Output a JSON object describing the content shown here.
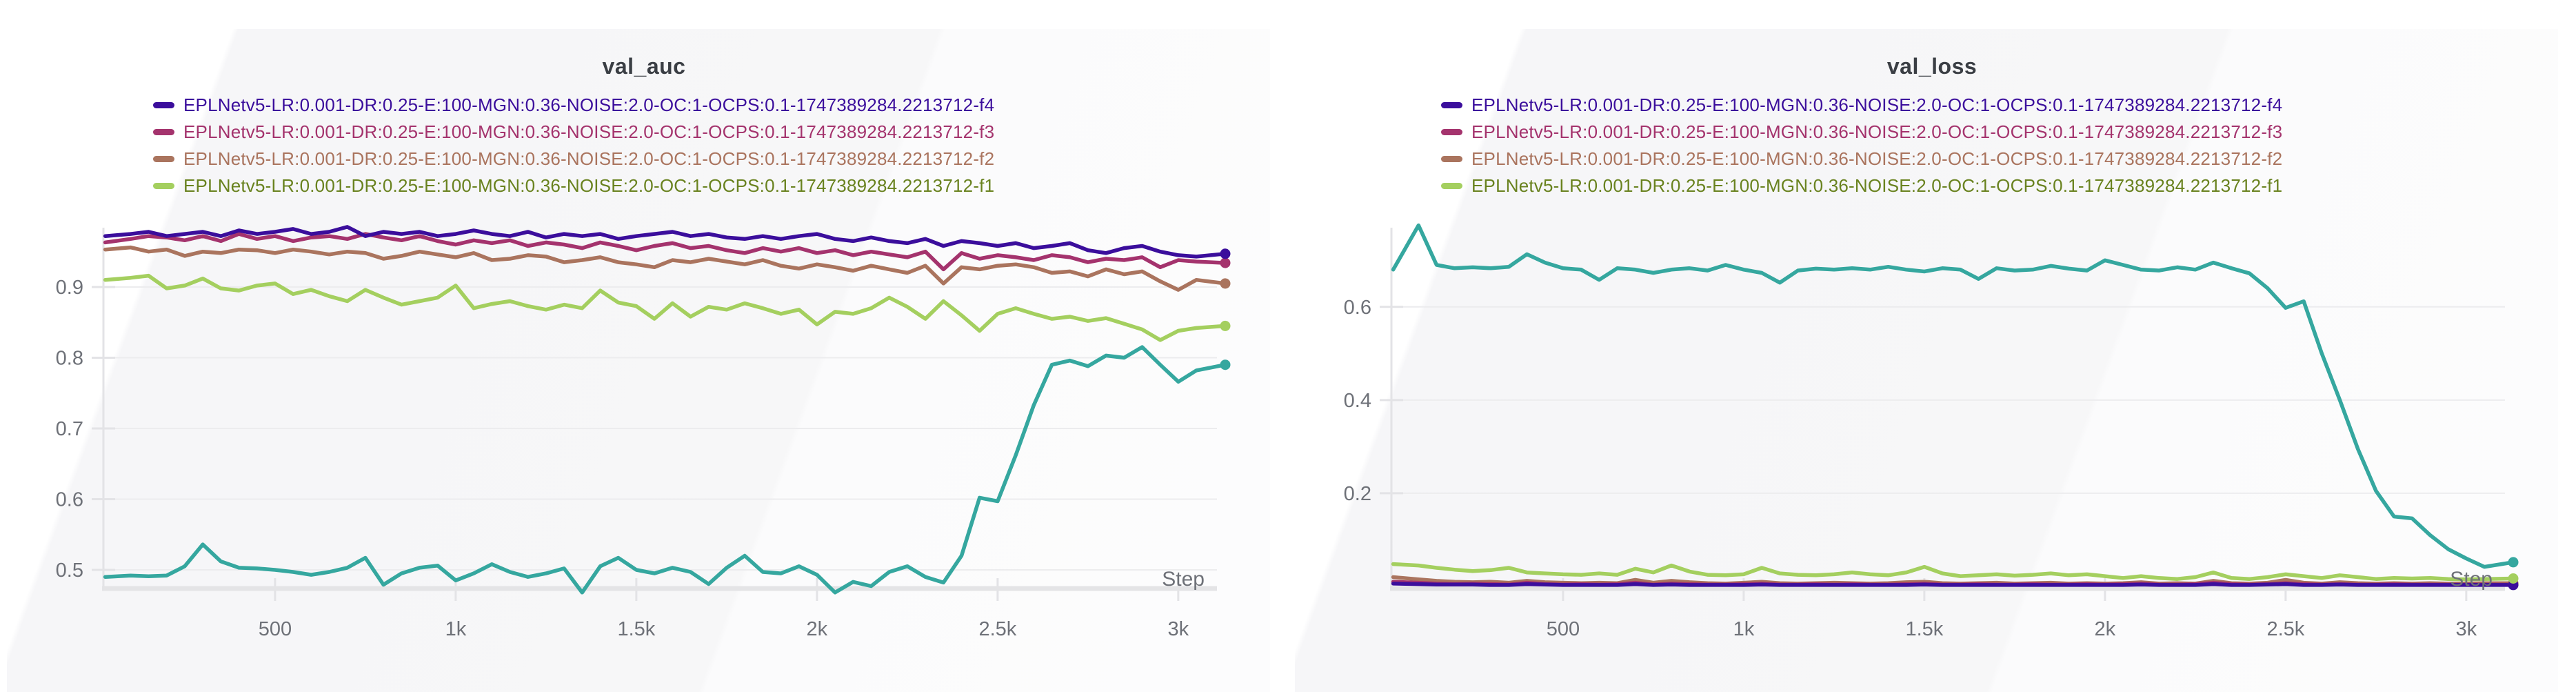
{
  "chart_data": [
    {
      "type": "line",
      "title": "val_auc",
      "xlabel": "Step",
      "grid": true,
      "legend_position": "top-left",
      "ylim": [
        0.4746,
        0.9839
      ],
      "xlim": [
        25,
        3160
      ],
      "y_ticks": [
        {
          "v": 0.9,
          "label": "0.9"
        },
        {
          "v": 0.8,
          "label": "0.8"
        },
        {
          "v": 0.7,
          "label": "0.7"
        },
        {
          "v": 0.6,
          "label": "0.6"
        },
        {
          "v": 0.5,
          "label": "0.5"
        }
      ],
      "x_ticks": [
        {
          "v": 500,
          "label": "500"
        },
        {
          "v": 1000,
          "label": "1k"
        },
        {
          "v": 1500,
          "label": "1.5k"
        },
        {
          "v": 2000,
          "label": "2k"
        },
        {
          "v": 2500,
          "label": "2.5k"
        },
        {
          "v": 3000,
          "label": "3k"
        }
      ],
      "x": [
        30,
        100,
        150,
        200,
        250,
        300,
        350,
        400,
        450,
        500,
        550,
        600,
        650,
        700,
        750,
        800,
        850,
        900,
        950,
        1000,
        1050,
        1100,
        1150,
        1200,
        1250,
        1300,
        1350,
        1400,
        1450,
        1500,
        1550,
        1600,
        1650,
        1700,
        1750,
        1800,
        1850,
        1900,
        1950,
        2000,
        2050,
        2100,
        2150,
        2200,
        2250,
        2300,
        2350,
        2400,
        2450,
        2500,
        2550,
        2600,
        2650,
        2700,
        2750,
        2800,
        2850,
        2900,
        2950,
        3000,
        3050,
        3130
      ],
      "series": [
        {
          "name": "EPLNetv5-LR:0.001-DR:0.25-E:100-MGN:0.36-NOISE:2.0-OC:1-OCPS:0.1-1747389284.2213712-f4",
          "color": "#3b0e9c",
          "text_color": "#3b0e9c",
          "z": 3,
          "in_legend": true,
          "values": [
            0.972,
            0.975,
            0.978,
            0.972,
            0.975,
            0.978,
            0.972,
            0.98,
            0.975,
            0.978,
            0.982,
            0.975,
            0.978,
            0.985,
            0.972,
            0.978,
            0.975,
            0.978,
            0.972,
            0.975,
            0.98,
            0.975,
            0.972,
            0.978,
            0.97,
            0.975,
            0.972,
            0.975,
            0.968,
            0.972,
            0.975,
            0.978,
            0.972,
            0.975,
            0.97,
            0.968,
            0.972,
            0.968,
            0.972,
            0.975,
            0.968,
            0.965,
            0.97,
            0.965,
            0.962,
            0.968,
            0.958,
            0.965,
            0.962,
            0.958,
            0.962,
            0.955,
            0.958,
            0.962,
            0.952,
            0.948,
            0.955,
            0.958,
            0.95,
            0.945,
            0.943,
            0.947
          ]
        },
        {
          "name": "EPLNetv5-LR:0.001-DR:0.25-E:100-MGN:0.36-NOISE:2.0-OC:1-OCPS:0.1-1747389284.2213712-f3",
          "color": "#a4336d",
          "text_color": "#a4336d",
          "z": 2,
          "in_legend": true,
          "values": [
            0.963,
            0.968,
            0.972,
            0.97,
            0.966,
            0.972,
            0.965,
            0.975,
            0.968,
            0.972,
            0.965,
            0.97,
            0.972,
            0.968,
            0.975,
            0.97,
            0.966,
            0.972,
            0.965,
            0.96,
            0.966,
            0.962,
            0.966,
            0.958,
            0.963,
            0.96,
            0.955,
            0.963,
            0.958,
            0.952,
            0.958,
            0.962,
            0.955,
            0.958,
            0.952,
            0.948,
            0.955,
            0.95,
            0.955,
            0.948,
            0.952,
            0.945,
            0.95,
            0.946,
            0.942,
            0.95,
            0.925,
            0.948,
            0.94,
            0.945,
            0.942,
            0.938,
            0.945,
            0.942,
            0.935,
            0.94,
            0.938,
            0.942,
            0.928,
            0.938,
            0.936,
            0.934
          ]
        },
        {
          "name": "EPLNetv5-LR:0.001-DR:0.25-E:100-MGN:0.36-NOISE:2.0-OC:1-OCPS:0.1-1747389284.2213712-f2",
          "color": "#aa745e",
          "text_color": "#aa745e",
          "z": 1,
          "in_legend": true,
          "values": [
            0.953,
            0.956,
            0.95,
            0.953,
            0.944,
            0.95,
            0.948,
            0.953,
            0.952,
            0.948,
            0.953,
            0.95,
            0.946,
            0.95,
            0.948,
            0.94,
            0.944,
            0.95,
            0.946,
            0.942,
            0.948,
            0.938,
            0.94,
            0.945,
            0.943,
            0.935,
            0.938,
            0.942,
            0.935,
            0.932,
            0.928,
            0.938,
            0.935,
            0.94,
            0.936,
            0.932,
            0.938,
            0.93,
            0.926,
            0.932,
            0.928,
            0.923,
            0.93,
            0.925,
            0.92,
            0.93,
            0.905,
            0.928,
            0.925,
            0.93,
            0.932,
            0.928,
            0.92,
            0.922,
            0.915,
            0.925,
            0.918,
            0.922,
            0.908,
            0.896,
            0.91,
            0.905
          ]
        },
        {
          "name": "EPLNetv5-LR:0.001-DR:0.25-E:100-MGN:0.36-NOISE:2.0-OC:1-OCPS:0.1-1747389284.2213712-f1",
          "color": "#a4cf5f",
          "text_color": "#69821f",
          "z": 4,
          "in_legend": true,
          "values": [
            0.91,
            0.913,
            0.916,
            0.898,
            0.902,
            0.912,
            0.898,
            0.895,
            0.902,
            0.905,
            0.89,
            0.896,
            0.887,
            0.88,
            0.896,
            0.885,
            0.875,
            0.88,
            0.885,
            0.902,
            0.87,
            0.876,
            0.88,
            0.873,
            0.868,
            0.875,
            0.87,
            0.895,
            0.878,
            0.873,
            0.855,
            0.877,
            0.858,
            0.872,
            0.868,
            0.877,
            0.87,
            0.862,
            0.868,
            0.847,
            0.865,
            0.862,
            0.87,
            0.885,
            0.872,
            0.855,
            0.88,
            0.86,
            0.838,
            0.862,
            0.87,
            0.862,
            0.855,
            0.858,
            0.852,
            0.856,
            0.848,
            0.84,
            0.825,
            0.838,
            0.842,
            0.845
          ]
        },
        {
          "name": "",
          "color": "#35a79f",
          "text_color": "#35a79f",
          "z": 5,
          "in_legend": false,
          "values": [
            0.49,
            0.492,
            0.491,
            0.492,
            0.505,
            0.536,
            0.512,
            0.503,
            0.502,
            0.5,
            0.497,
            0.493,
            0.497,
            0.503,
            0.517,
            0.479,
            0.495,
            0.503,
            0.506,
            0.485,
            0.495,
            0.508,
            0.497,
            0.49,
            0.495,
            0.502,
            0.468,
            0.505,
            0.517,
            0.5,
            0.495,
            0.503,
            0.497,
            0.48,
            0.503,
            0.52,
            0.497,
            0.495,
            0.505,
            0.493,
            0.468,
            0.483,
            0.477,
            0.497,
            0.505,
            0.49,
            0.482,
            0.52,
            0.602,
            0.597,
            0.662,
            0.733,
            0.79,
            0.796,
            0.788,
            0.803,
            0.8,
            0.815,
            0.79,
            0.766,
            0.782,
            0.79
          ]
        }
      ]
    },
    {
      "type": "line",
      "title": "val_loss",
      "xlabel": "Step",
      "grid": true,
      "legend_position": "top-left",
      "ylim": [
        -0.003,
        0.77
      ],
      "xlim": [
        25,
        3160
      ],
      "y_ticks": [
        {
          "v": 0.6,
          "label": "0.6"
        },
        {
          "v": 0.4,
          "label": "0.4"
        },
        {
          "v": 0.2,
          "label": "0.2"
        }
      ],
      "x_ticks": [
        {
          "v": 500,
          "label": "500"
        },
        {
          "v": 1000,
          "label": "1k"
        },
        {
          "v": 1500,
          "label": "1.5k"
        },
        {
          "v": 2000,
          "label": "2k"
        },
        {
          "v": 2500,
          "label": "2.5k"
        },
        {
          "v": 3000,
          "label": "3k"
        }
      ],
      "x": [
        30,
        100,
        150,
        200,
        250,
        300,
        350,
        400,
        450,
        500,
        550,
        600,
        650,
        700,
        750,
        800,
        850,
        900,
        950,
        1000,
        1050,
        1100,
        1150,
        1200,
        1250,
        1300,
        1350,
        1400,
        1450,
        1500,
        1550,
        1600,
        1650,
        1700,
        1750,
        1800,
        1850,
        1900,
        1950,
        2000,
        2050,
        2100,
        2150,
        2200,
        2250,
        2300,
        2350,
        2400,
        2450,
        2500,
        2550,
        2600,
        2650,
        2700,
        2750,
        2800,
        2850,
        2900,
        2950,
        3000,
        3050,
        3130
      ],
      "series": [
        {
          "name": "EPLNetv5-LR:0.001-DR:0.25-E:100-MGN:0.36-NOISE:2.0-OC:1-OCPS:0.1-1747389284.2213712-f4",
          "color": "#3b0e9c",
          "text_color": "#3b0e9c",
          "z": 3,
          "in_legend": true,
          "values": [
            0.006,
            0.005,
            0.004,
            0.004,
            0.004,
            0.003,
            0.003,
            0.005,
            0.004,
            0.003,
            0.003,
            0.003,
            0.003,
            0.005,
            0.003,
            0.004,
            0.003,
            0.003,
            0.003,
            0.003,
            0.004,
            0.003,
            0.003,
            0.003,
            0.003,
            0.003,
            0.003,
            0.003,
            0.003,
            0.004,
            0.003,
            0.003,
            0.003,
            0.003,
            0.003,
            0.003,
            0.003,
            0.003,
            0.003,
            0.003,
            0.003,
            0.004,
            0.003,
            0.003,
            0.003,
            0.005,
            0.003,
            0.003,
            0.004,
            0.005,
            0.003,
            0.003,
            0.004,
            0.003,
            0.003,
            0.003,
            0.003,
            0.003,
            0.003,
            0.003,
            0.003,
            0.003
          ]
        },
        {
          "name": "EPLNetv5-LR:0.001-DR:0.25-E:100-MGN:0.36-NOISE:2.0-OC:1-OCPS:0.1-1747389284.2213712-f3",
          "color": "#a4336d",
          "text_color": "#a4336d",
          "z": 2,
          "in_legend": true,
          "values": [
            0.01,
            0.008,
            0.006,
            0.005,
            0.006,
            0.005,
            0.004,
            0.008,
            0.005,
            0.004,
            0.005,
            0.004,
            0.005,
            0.008,
            0.004,
            0.006,
            0.005,
            0.004,
            0.004,
            0.005,
            0.006,
            0.004,
            0.004,
            0.005,
            0.004,
            0.005,
            0.004,
            0.004,
            0.005,
            0.006,
            0.004,
            0.004,
            0.005,
            0.004,
            0.004,
            0.005,
            0.004,
            0.004,
            0.005,
            0.004,
            0.005,
            0.006,
            0.004,
            0.004,
            0.005,
            0.008,
            0.005,
            0.004,
            0.005,
            0.007,
            0.005,
            0.004,
            0.005,
            0.004,
            0.004,
            0.005,
            0.004,
            0.004,
            0.004,
            0.004,
            0.004,
            0.004
          ]
        },
        {
          "name": "EPLNetv5-LR:0.001-DR:0.25-E:100-MGN:0.36-NOISE:2.0-OC:1-OCPS:0.1-1747389284.2213712-f2",
          "color": "#aa745e",
          "text_color": "#aa745e",
          "z": 1,
          "in_legend": true,
          "values": [
            0.02,
            0.015,
            0.012,
            0.01,
            0.009,
            0.01,
            0.008,
            0.012,
            0.009,
            0.008,
            0.007,
            0.008,
            0.007,
            0.014,
            0.008,
            0.012,
            0.009,
            0.007,
            0.006,
            0.008,
            0.01,
            0.007,
            0.006,
            0.007,
            0.008,
            0.007,
            0.006,
            0.007,
            0.009,
            0.01,
            0.007,
            0.006,
            0.007,
            0.008,
            0.006,
            0.007,
            0.008,
            0.006,
            0.007,
            0.006,
            0.007,
            0.009,
            0.006,
            0.007,
            0.006,
            0.012,
            0.007,
            0.006,
            0.008,
            0.014,
            0.008,
            0.006,
            0.009,
            0.007,
            0.006,
            0.007,
            0.006,
            0.007,
            0.006,
            0.006,
            0.007,
            0.007
          ]
        },
        {
          "name": "EPLNetv5-LR:0.001-DR:0.25-E:100-MGN:0.36-NOISE:2.0-OC:1-OCPS:0.1-1747389284.2213712-f1",
          "color": "#a4cf5f",
          "text_color": "#69821f",
          "z": 4,
          "in_legend": true,
          "values": [
            0.048,
            0.045,
            0.04,
            0.036,
            0.033,
            0.035,
            0.04,
            0.03,
            0.028,
            0.026,
            0.025,
            0.028,
            0.025,
            0.038,
            0.03,
            0.045,
            0.032,
            0.025,
            0.024,
            0.026,
            0.04,
            0.028,
            0.025,
            0.024,
            0.026,
            0.03,
            0.026,
            0.024,
            0.03,
            0.042,
            0.028,
            0.022,
            0.024,
            0.026,
            0.023,
            0.025,
            0.028,
            0.024,
            0.026,
            0.022,
            0.018,
            0.022,
            0.018,
            0.016,
            0.02,
            0.03,
            0.018,
            0.016,
            0.02,
            0.026,
            0.022,
            0.018,
            0.024,
            0.02,
            0.016,
            0.018,
            0.017,
            0.018,
            0.016,
            0.015,
            0.016,
            0.017
          ]
        },
        {
          "name": "",
          "color": "#35a79f",
          "text_color": "#35a79f",
          "z": 5,
          "in_legend": false,
          "values": [
            0.68,
            0.775,
            0.69,
            0.683,
            0.685,
            0.683,
            0.686,
            0.713,
            0.695,
            0.683,
            0.68,
            0.658,
            0.683,
            0.68,
            0.673,
            0.68,
            0.683,
            0.678,
            0.69,
            0.68,
            0.673,
            0.652,
            0.678,
            0.682,
            0.68,
            0.683,
            0.68,
            0.686,
            0.68,
            0.676,
            0.683,
            0.68,
            0.66,
            0.683,
            0.678,
            0.68,
            0.688,
            0.682,
            0.678,
            0.7,
            0.69,
            0.68,
            0.678,
            0.685,
            0.68,
            0.695,
            0.683,
            0.672,
            0.64,
            0.598,
            0.612,
            0.5,
            0.4,
            0.295,
            0.205,
            0.15,
            0.146,
            0.11,
            0.08,
            0.06,
            0.042,
            0.052
          ]
        }
      ]
    }
  ],
  "style": {
    "grid_color": "#ececee",
    "axis_color": "#e3e3e6",
    "baseline_color": "#e4e4e6",
    "tick_text_color": "#6e7178",
    "title_color": "#3a3e44"
  }
}
